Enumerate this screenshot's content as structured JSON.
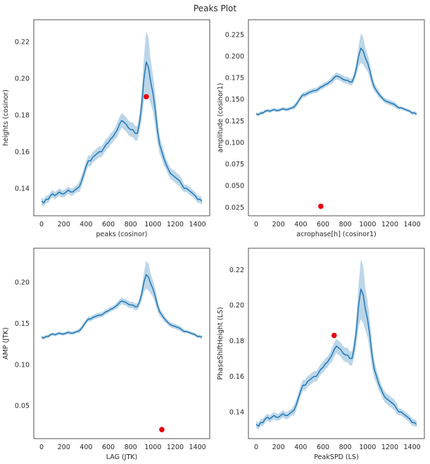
{
  "suptitle": "Peaks Plot",
  "colors": {
    "line": "#1f77b4",
    "band": "#a6c8e2",
    "marker": "#e8000b"
  },
  "profile": {
    "x": [
      0,
      20,
      40,
      60,
      80,
      100,
      120,
      140,
      160,
      180,
      200,
      220,
      240,
      260,
      280,
      300,
      320,
      340,
      360,
      380,
      400,
      420,
      440,
      460,
      480,
      500,
      520,
      540,
      560,
      580,
      600,
      620,
      640,
      660,
      680,
      700,
      720,
      740,
      760,
      780,
      800,
      820,
      840,
      860,
      880,
      900,
      920,
      940,
      960,
      980,
      1000,
      1020,
      1040,
      1060,
      1080,
      1100,
      1120,
      1140,
      1160,
      1180,
      1200,
      1220,
      1240,
      1260,
      1280,
      1300,
      1320,
      1340,
      1360,
      1380,
      1400,
      1420,
      1440
    ],
    "y": [
      0.133,
      0.132,
      0.134,
      0.134,
      0.136,
      0.137,
      0.136,
      0.137,
      0.138,
      0.137,
      0.137,
      0.138,
      0.139,
      0.138,
      0.138,
      0.139,
      0.14,
      0.141,
      0.144,
      0.148,
      0.152,
      0.155,
      0.155,
      0.157,
      0.158,
      0.159,
      0.16,
      0.16,
      0.162,
      0.164,
      0.165,
      0.167,
      0.168,
      0.17,
      0.172,
      0.175,
      0.177,
      0.176,
      0.175,
      0.173,
      0.172,
      0.172,
      0.17,
      0.17,
      0.176,
      0.186,
      0.2,
      0.209,
      0.206,
      0.198,
      0.192,
      0.183,
      0.172,
      0.164,
      0.16,
      0.156,
      0.153,
      0.15,
      0.148,
      0.147,
      0.146,
      0.145,
      0.144,
      0.142,
      0.14,
      0.14,
      0.139,
      0.138,
      0.137,
      0.136,
      0.134,
      0.134,
      0.133
    ],
    "ci": [
      0.002,
      0.002,
      0.002,
      0.002,
      0.002,
      0.002,
      0.002,
      0.002,
      0.002,
      0.002,
      0.002,
      0.002,
      0.002,
      0.002,
      0.002,
      0.002,
      0.002,
      0.003,
      0.003,
      0.003,
      0.003,
      0.003,
      0.003,
      0.003,
      0.003,
      0.003,
      0.003,
      0.003,
      0.003,
      0.003,
      0.003,
      0.003,
      0.003,
      0.003,
      0.004,
      0.004,
      0.004,
      0.004,
      0.004,
      0.004,
      0.004,
      0.004,
      0.004,
      0.004,
      0.005,
      0.008,
      0.012,
      0.017,
      0.016,
      0.012,
      0.01,
      0.009,
      0.007,
      0.005,
      0.004,
      0.004,
      0.003,
      0.003,
      0.003,
      0.003,
      0.003,
      0.003,
      0.003,
      0.003,
      0.002,
      0.002,
      0.002,
      0.002,
      0.002,
      0.002,
      0.002,
      0.002,
      0.002
    ]
  },
  "chart_data": [
    {
      "type": "line",
      "xlabel": "peaks (cosinor)",
      "ylabel": "heights (cosinor)",
      "xlim": [
        -70,
        1510
      ],
      "ylim": [
        0.125,
        0.232
      ],
      "xticks": [
        0,
        200,
        400,
        600,
        800,
        1000,
        1200,
        1400
      ],
      "yticks": [
        0.14,
        0.16,
        0.18,
        0.2,
        0.22
      ],
      "ytick_labels": [
        "0.14",
        "0.16",
        "0.18",
        "0.20",
        "0.22"
      ],
      "point": {
        "x": 940,
        "y": 0.19
      }
    },
    {
      "type": "line",
      "xlabel": "acrophase[h] (cosinor1)",
      "ylabel": "amplitude (cosinor1)",
      "xlim": [
        -70,
        1510
      ],
      "ylim": [
        0.015,
        0.242
      ],
      "xticks": [
        0,
        200,
        400,
        600,
        800,
        1000,
        1200,
        1400
      ],
      "yticks": [
        0.025,
        0.05,
        0.075,
        0.1,
        0.125,
        0.15,
        0.175,
        0.2,
        0.225
      ],
      "ytick_labels": [
        "0.025",
        "0.050",
        "0.075",
        "0.100",
        "0.125",
        "0.150",
        "0.175",
        "0.200",
        "0.225"
      ],
      "point": {
        "x": 580,
        "y": 0.026
      }
    },
    {
      "type": "line",
      "xlabel": "LAG (JTK)",
      "ylabel": "AMP (JTK)",
      "xlim": [
        -70,
        1510
      ],
      "ylim": [
        0.01,
        0.241
      ],
      "xticks": [
        0,
        200,
        400,
        600,
        800,
        1000,
        1200,
        1400
      ],
      "yticks": [
        0.05,
        0.1,
        0.15,
        0.2
      ],
      "ytick_labels": [
        "0.05",
        "0.10",
        "0.15",
        "0.20"
      ],
      "point": {
        "x": 1080,
        "y": 0.021
      }
    },
    {
      "type": "line",
      "xlabel": "PeakSPD (LS)",
      "ylabel": "PhaseShiftHeight (LS)",
      "xlim": [
        -70,
        1510
      ],
      "ylim": [
        0.125,
        0.232
      ],
      "xticks": [
        0,
        200,
        400,
        600,
        800,
        1000,
        1200,
        1400
      ],
      "yticks": [
        0.14,
        0.16,
        0.18,
        0.2,
        0.22
      ],
      "ytick_labels": [
        "0.14",
        "0.16",
        "0.18",
        "0.20",
        "0.22"
      ],
      "point": {
        "x": 700,
        "y": 0.183
      }
    }
  ]
}
